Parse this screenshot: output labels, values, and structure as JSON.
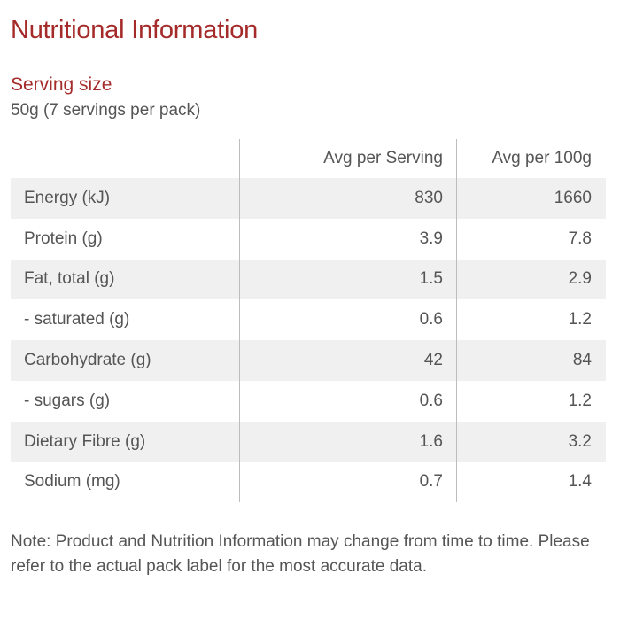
{
  "page": {
    "title": "Nutritional Information"
  },
  "serving": {
    "heading": "Serving size",
    "value": "50g (7 servings per pack)"
  },
  "table": {
    "headers": [
      "",
      "Avg per Serving",
      "Avg per 100g"
    ],
    "rows": [
      {
        "name": "Energy (kJ)",
        "per_serving": "830",
        "per_100g": "1660"
      },
      {
        "name": "Protein (g)",
        "per_serving": "3.9",
        "per_100g": "7.8"
      },
      {
        "name": "Fat, total (g)",
        "per_serving": "1.5",
        "per_100g": "2.9"
      },
      {
        "name": "- saturated (g)",
        "per_serving": "0.6",
        "per_100g": "1.2"
      },
      {
        "name": "Carbohydrate (g)",
        "per_serving": "42",
        "per_100g": "84"
      },
      {
        "name": "- sugars (g)",
        "per_serving": "0.6",
        "per_100g": "1.2"
      },
      {
        "name": "Dietary Fibre (g)",
        "per_serving": "1.6",
        "per_100g": "3.2"
      },
      {
        "name": "Sodium (mg)",
        "per_serving": "0.7",
        "per_100g": "1.4"
      }
    ]
  },
  "note": {
    "text": "Note: Product and Nutrition Information may change from time to time. Please refer to the actual pack label for the most accurate data."
  },
  "colors": {
    "accent": "#a52a2a",
    "text": "#555555",
    "row_stripe": "#f0f0f0",
    "divider": "#bdbdbd"
  }
}
